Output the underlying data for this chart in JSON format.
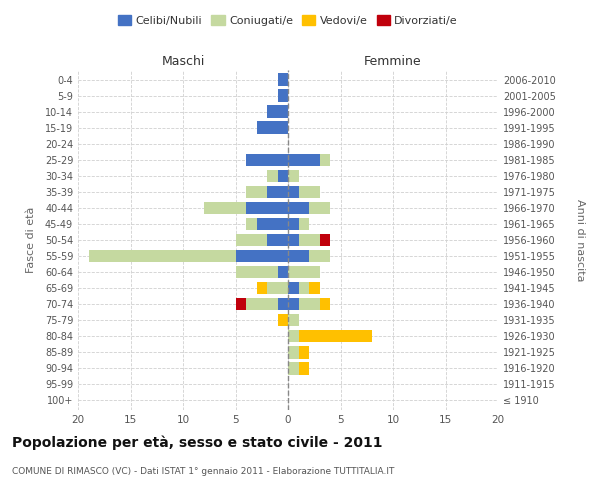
{
  "age_groups": [
    "100+",
    "95-99",
    "90-94",
    "85-89",
    "80-84",
    "75-79",
    "70-74",
    "65-69",
    "60-64",
    "55-59",
    "50-54",
    "45-49",
    "40-44",
    "35-39",
    "30-34",
    "25-29",
    "20-24",
    "15-19",
    "10-14",
    "5-9",
    "0-4"
  ],
  "birth_years": [
    "≤ 1910",
    "1911-1915",
    "1916-1920",
    "1921-1925",
    "1926-1930",
    "1931-1935",
    "1936-1940",
    "1941-1945",
    "1946-1950",
    "1951-1955",
    "1956-1960",
    "1961-1965",
    "1966-1970",
    "1971-1975",
    "1976-1980",
    "1981-1985",
    "1986-1990",
    "1991-1995",
    "1996-2000",
    "2001-2005",
    "2006-2010"
  ],
  "male": {
    "celibi": [
      0,
      0,
      0,
      0,
      0,
      0,
      1,
      0,
      1,
      5,
      2,
      3,
      4,
      2,
      1,
      4,
      0,
      3,
      2,
      1,
      1
    ],
    "coniugati": [
      0,
      0,
      0,
      0,
      0,
      0,
      3,
      2,
      4,
      14,
      3,
      1,
      4,
      2,
      1,
      0,
      0,
      0,
      0,
      0,
      0
    ],
    "vedovi": [
      0,
      0,
      0,
      0,
      0,
      1,
      0,
      1,
      0,
      0,
      0,
      0,
      0,
      0,
      0,
      0,
      0,
      0,
      0,
      0,
      0
    ],
    "divorziati": [
      0,
      0,
      0,
      0,
      0,
      0,
      1,
      0,
      0,
      0,
      0,
      0,
      0,
      0,
      0,
      0,
      0,
      0,
      0,
      0,
      0
    ]
  },
  "female": {
    "nubili": [
      0,
      0,
      0,
      0,
      0,
      0,
      1,
      1,
      0,
      2,
      1,
      1,
      2,
      1,
      0,
      3,
      0,
      0,
      0,
      0,
      0
    ],
    "coniugate": [
      0,
      0,
      1,
      1,
      1,
      1,
      2,
      1,
      3,
      2,
      2,
      1,
      2,
      2,
      1,
      1,
      0,
      0,
      0,
      0,
      0
    ],
    "vedove": [
      0,
      0,
      1,
      1,
      7,
      0,
      1,
      1,
      0,
      0,
      0,
      0,
      0,
      0,
      0,
      0,
      0,
      0,
      0,
      0,
      0
    ],
    "divorziate": [
      0,
      0,
      0,
      0,
      0,
      0,
      0,
      0,
      0,
      0,
      1,
      0,
      0,
      0,
      0,
      0,
      0,
      0,
      0,
      0,
      0
    ]
  },
  "color_celibi": "#4472c4",
  "color_coniugati": "#c5d9a0",
  "color_vedovi": "#ffc000",
  "color_divorziati": "#c0000c",
  "xlim": 20,
  "title": "Popolazione per età, sesso e stato civile - 2011",
  "subtitle": "COMUNE DI RIMASCO (VC) - Dati ISTAT 1° gennaio 2011 - Elaborazione TUTTITALIA.IT",
  "ylabel_left": "Fasce di età",
  "ylabel_right": "Anni di nascita",
  "xlabel_left": "Maschi",
  "xlabel_right": "Femmine",
  "legend_labels": [
    "Celibi/Nubili",
    "Coniugati/e",
    "Vedovi/e",
    "Divorziati/e"
  ],
  "bg_color": "#ffffff",
  "grid_color": "#d0d0d0"
}
